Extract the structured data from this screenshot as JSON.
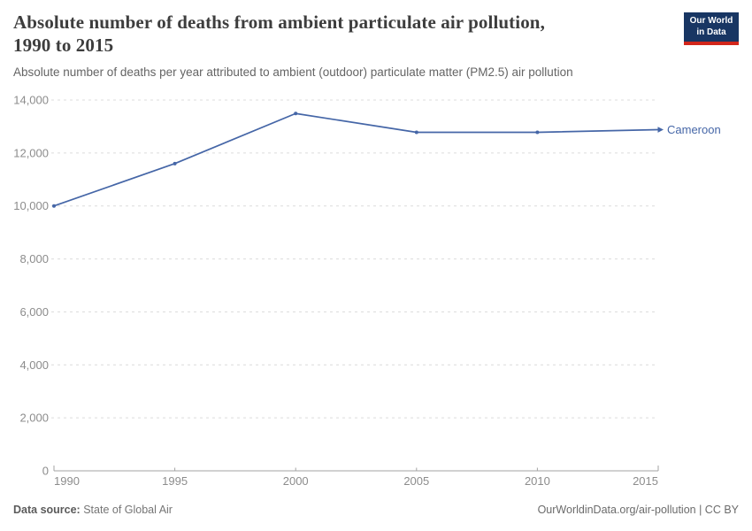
{
  "header": {
    "title_line1": "Absolute number of deaths from ambient particulate air pollution,",
    "title_line2": "1990 to 2015",
    "subtitle": "Absolute number of deaths per year attributed to ambient (outdoor) particulate matter (PM2.5) air pollution",
    "logo": {
      "line1": "Our World",
      "line2": "in Data",
      "bg_color": "#183663",
      "accent_color": "#d2261b"
    }
  },
  "chart_data": {
    "type": "line",
    "title": "Absolute number of deaths from ambient particulate air pollution, 1990 to 2015",
    "subtitle": "Absolute number of deaths per year attributed to ambient (outdoor) particulate matter (PM2.5) air pollution",
    "x": [
      1990,
      1995,
      2000,
      2005,
      2010,
      2015
    ],
    "xtick_labels": [
      "1990",
      "1995",
      "2000",
      "2005",
      "2010",
      "2015"
    ],
    "series": [
      {
        "name": "Cameroon",
        "color": "#4566a7",
        "values": [
          10000,
          11600,
          13490,
          12780,
          12780,
          12880
        ]
      }
    ],
    "ylim": [
      0,
      14000
    ],
    "ytick_interval": 2000,
    "ytick_labels": [
      "0",
      "2,000",
      "4,000",
      "6,000",
      "8,000",
      "10,000",
      "12,000",
      "14,000"
    ],
    "grid": "horizontal-dashed",
    "legend": "end-of-line-label",
    "colors": {
      "gridline": "#dcdcdc",
      "axis": "#a3a3a3",
      "tick_label": "#8c8c8c"
    }
  },
  "footer": {
    "datasource_label": "Data source:",
    "datasource_value": "State of Global Air",
    "credit": "OurWorldinData.org/air-pollution | CC BY"
  }
}
